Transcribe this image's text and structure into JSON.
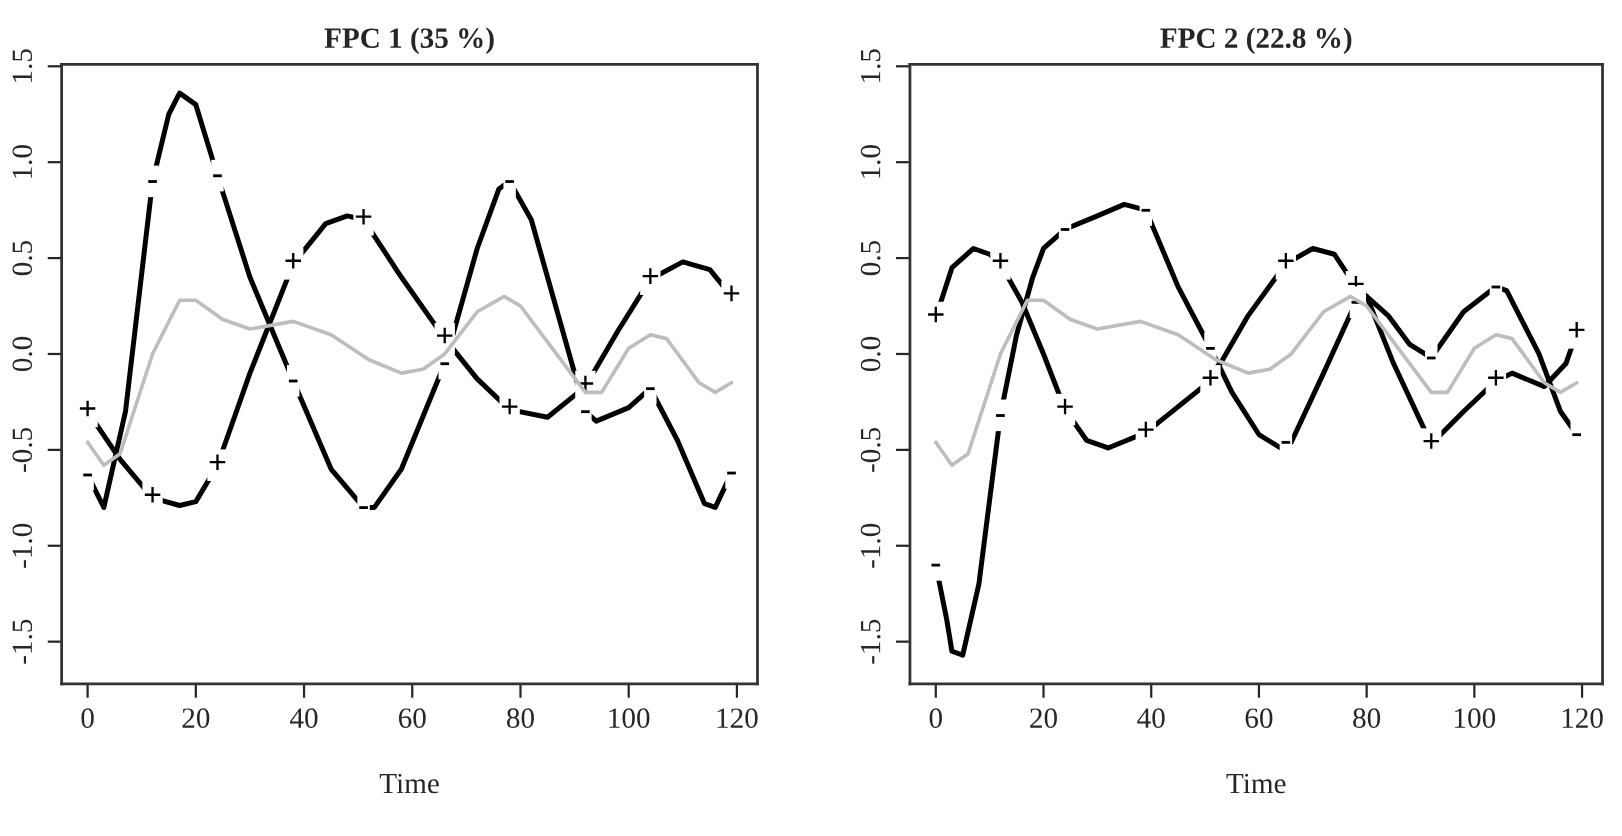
{
  "chart_data": [
    {
      "type": "line",
      "title": "FPC 1 (35 %)",
      "xlabel": "Time",
      "xlim": [
        -4.8,
        123.8
      ],
      "xticks": [
        0,
        20,
        40,
        60,
        80,
        100,
        120
      ],
      "ylim": [
        -1.72,
        1.51
      ],
      "yticks": [
        -1.5,
        {
          "value": -1,
          "label": "-1.0"
        },
        -0.5,
        {
          "value": 0,
          "label": "0.0"
        },
        0.5,
        {
          "value": 1,
          "label": "1.0"
        },
        1.5
      ],
      "series": [
        {
          "color": "#bdbdbd",
          "x": [
            0,
            3,
            6,
            12,
            17,
            20,
            25,
            30,
            38,
            45,
            52,
            58,
            62,
            66,
            72,
            77,
            80,
            88,
            92,
            95,
            100,
            104,
            107,
            113,
            116,
            119
          ],
          "values": [
            -0.46,
            -0.58,
            -0.52,
            0.0,
            0.28,
            0.28,
            0.18,
            0.13,
            0.17,
            0.1,
            -0.03,
            -0.1,
            -0.08,
            0.0,
            0.22,
            0.3,
            0.25,
            -0.05,
            -0.2,
            -0.2,
            0.03,
            0.1,
            0.08,
            -0.15,
            -0.2,
            -0.15
          ]
        },
        {
          "color": "#000000",
          "x": [
            0,
            6,
            12,
            17,
            20,
            24,
            30,
            38,
            44,
            48,
            51,
            58,
            66,
            72,
            78,
            85,
            92,
            98,
            104,
            110,
            115,
            119
          ],
          "values": [
            -0.3,
            -0.55,
            -0.75,
            -0.79,
            -0.77,
            -0.58,
            -0.1,
            0.47,
            0.68,
            0.72,
            0.7,
            0.4,
            0.08,
            -0.13,
            -0.29,
            -0.33,
            -0.17,
            0.12,
            0.39,
            0.48,
            0.44,
            0.3
          ]
        },
        {
          "color": "#000000",
          "x": [
            0,
            3,
            7,
            12,
            15,
            17,
            20,
            24,
            30,
            38,
            45,
            51,
            53,
            58,
            66,
            72,
            76,
            78,
            82,
            88,
            92,
            94,
            100,
            104,
            109,
            114,
            116,
            119
          ],
          "values": [
            -0.63,
            -0.8,
            -0.3,
            0.9,
            1.25,
            1.36,
            1.3,
            0.93,
            0.4,
            -0.14,
            -0.6,
            -0.8,
            -0.8,
            -0.6,
            -0.05,
            0.55,
            0.86,
            0.9,
            0.7,
            0.1,
            -0.3,
            -0.35,
            -0.28,
            -0.18,
            -0.45,
            -0.78,
            -0.8,
            -0.62
          ]
        }
      ],
      "annotations": [
        {
          "text": "+",
          "x": 0,
          "y": -0.3
        },
        {
          "text": "+",
          "x": 12,
          "y": -0.75
        },
        {
          "text": "+",
          "x": 24,
          "y": -0.58
        },
        {
          "text": "+",
          "x": 38,
          "y": 0.47
        },
        {
          "text": "+",
          "x": 51,
          "y": 0.7
        },
        {
          "text": "+",
          "x": 66,
          "y": 0.08
        },
        {
          "text": "+",
          "x": 78,
          "y": -0.29
        },
        {
          "text": "+",
          "x": 92,
          "y": -0.17
        },
        {
          "text": "+",
          "x": 104,
          "y": 0.39
        },
        {
          "text": "+",
          "x": 119,
          "y": 0.3
        },
        {
          "text": "-",
          "x": 0,
          "y": -0.63
        },
        {
          "text": "-",
          "x": 12,
          "y": 0.9
        },
        {
          "text": "-",
          "x": 24,
          "y": 0.93
        },
        {
          "text": "-",
          "x": 38,
          "y": -0.14
        },
        {
          "text": "-",
          "x": 51,
          "y": -0.8
        },
        {
          "text": "-",
          "x": 66,
          "y": -0.05
        },
        {
          "text": "-",
          "x": 78,
          "y": 0.9
        },
        {
          "text": "-",
          "x": 92,
          "y": -0.3
        },
        {
          "text": "-",
          "x": 104,
          "y": -0.18
        },
        {
          "text": "-",
          "x": 119,
          "y": -0.62
        }
      ]
    },
    {
      "type": "line",
      "title": "FPC 2 (22.8 %)",
      "xlabel": "Time",
      "xlim": [
        -4.8,
        123.8
      ],
      "xticks": [
        0,
        20,
        40,
        60,
        80,
        100,
        120
      ],
      "ylim": [
        -1.72,
        1.51
      ],
      "yticks": [
        -1.5,
        {
          "value": -1,
          "label": "-1.0"
        },
        -0.5,
        {
          "value": 0,
          "label": "0.0"
        },
        0.5,
        {
          "value": 1,
          "label": "1.0"
        },
        1.5
      ],
      "series": [
        {
          "color": "#bdbdbd",
          "x": [
            0,
            3,
            6,
            12,
            17,
            20,
            25,
            30,
            38,
            45,
            52,
            58,
            62,
            66,
            72,
            77,
            80,
            88,
            92,
            95,
            100,
            104,
            107,
            113,
            116,
            119
          ],
          "values": [
            -0.46,
            -0.58,
            -0.52,
            0.0,
            0.28,
            0.28,
            0.18,
            0.13,
            0.17,
            0.1,
            -0.03,
            -0.1,
            -0.08,
            0.0,
            0.22,
            0.3,
            0.25,
            -0.05,
            -0.2,
            -0.2,
            0.03,
            0.1,
            0.08,
            -0.15,
            -0.2,
            -0.15
          ]
        },
        {
          "color": "#000000",
          "x": [
            0,
            3,
            7,
            10,
            12,
            16,
            20,
            24,
            28,
            32,
            39,
            51,
            58,
            65,
            70,
            74,
            78,
            80,
            85,
            92,
            98,
            104,
            107,
            113,
            117,
            119
          ],
          "values": [
            0.19,
            0.45,
            0.55,
            0.52,
            0.47,
            0.27,
            0.0,
            -0.29,
            -0.45,
            -0.49,
            -0.41,
            -0.14,
            0.2,
            0.47,
            0.55,
            0.52,
            0.35,
            0.3,
            -0.05,
            -0.47,
            -0.3,
            -0.14,
            -0.1,
            -0.17,
            -0.05,
            0.11
          ]
        },
        {
          "color": "#000000",
          "x": [
            0,
            2,
            3,
            5,
            8,
            12,
            15,
            18,
            20,
            24,
            30,
            35,
            39,
            45,
            51,
            55,
            60,
            64,
            66,
            72,
            78,
            80,
            84,
            88,
            92,
            98,
            104,
            106,
            112,
            116,
            119
          ],
          "values": [
            -1.1,
            -1.38,
            -1.55,
            -1.57,
            -1.2,
            -0.32,
            0.1,
            0.4,
            0.55,
            0.65,
            0.72,
            0.78,
            0.75,
            0.35,
            0.03,
            -0.2,
            -0.42,
            -0.49,
            -0.46,
            -0.1,
            0.27,
            0.3,
            0.2,
            0.05,
            -0.02,
            0.22,
            0.35,
            0.33,
            0.0,
            -0.3,
            -0.42
          ]
        }
      ],
      "annotations": [
        {
          "text": "+",
          "x": 0,
          "y": 0.19
        },
        {
          "text": "+",
          "x": 12,
          "y": 0.47
        },
        {
          "text": "+",
          "x": 24,
          "y": -0.29
        },
        {
          "text": "+",
          "x": 39,
          "y": -0.41
        },
        {
          "text": "+",
          "x": 51,
          "y": -0.14
        },
        {
          "text": "+",
          "x": 65,
          "y": 0.47
        },
        {
          "text": "+",
          "x": 78,
          "y": 0.35
        },
        {
          "text": "+",
          "x": 92,
          "y": -0.47
        },
        {
          "text": "+",
          "x": 104,
          "y": -0.14
        },
        {
          "text": "+",
          "x": 119,
          "y": 0.11
        },
        {
          "text": "-",
          "x": 0,
          "y": -1.1
        },
        {
          "text": "-",
          "x": 12,
          "y": -0.32
        },
        {
          "text": "-",
          "x": 24,
          "y": 0.65
        },
        {
          "text": "-",
          "x": 39,
          "y": 0.75
        },
        {
          "text": "-",
          "x": 51,
          "y": 0.03
        },
        {
          "text": "-",
          "x": 65,
          "y": -0.46
        },
        {
          "text": "-",
          "x": 78,
          "y": 0.27
        },
        {
          "text": "-",
          "x": 92,
          "y": -0.02
        },
        {
          "text": "-",
          "x": 104,
          "y": 0.35
        },
        {
          "text": "-",
          "x": 119,
          "y": -0.42
        }
      ]
    }
  ]
}
